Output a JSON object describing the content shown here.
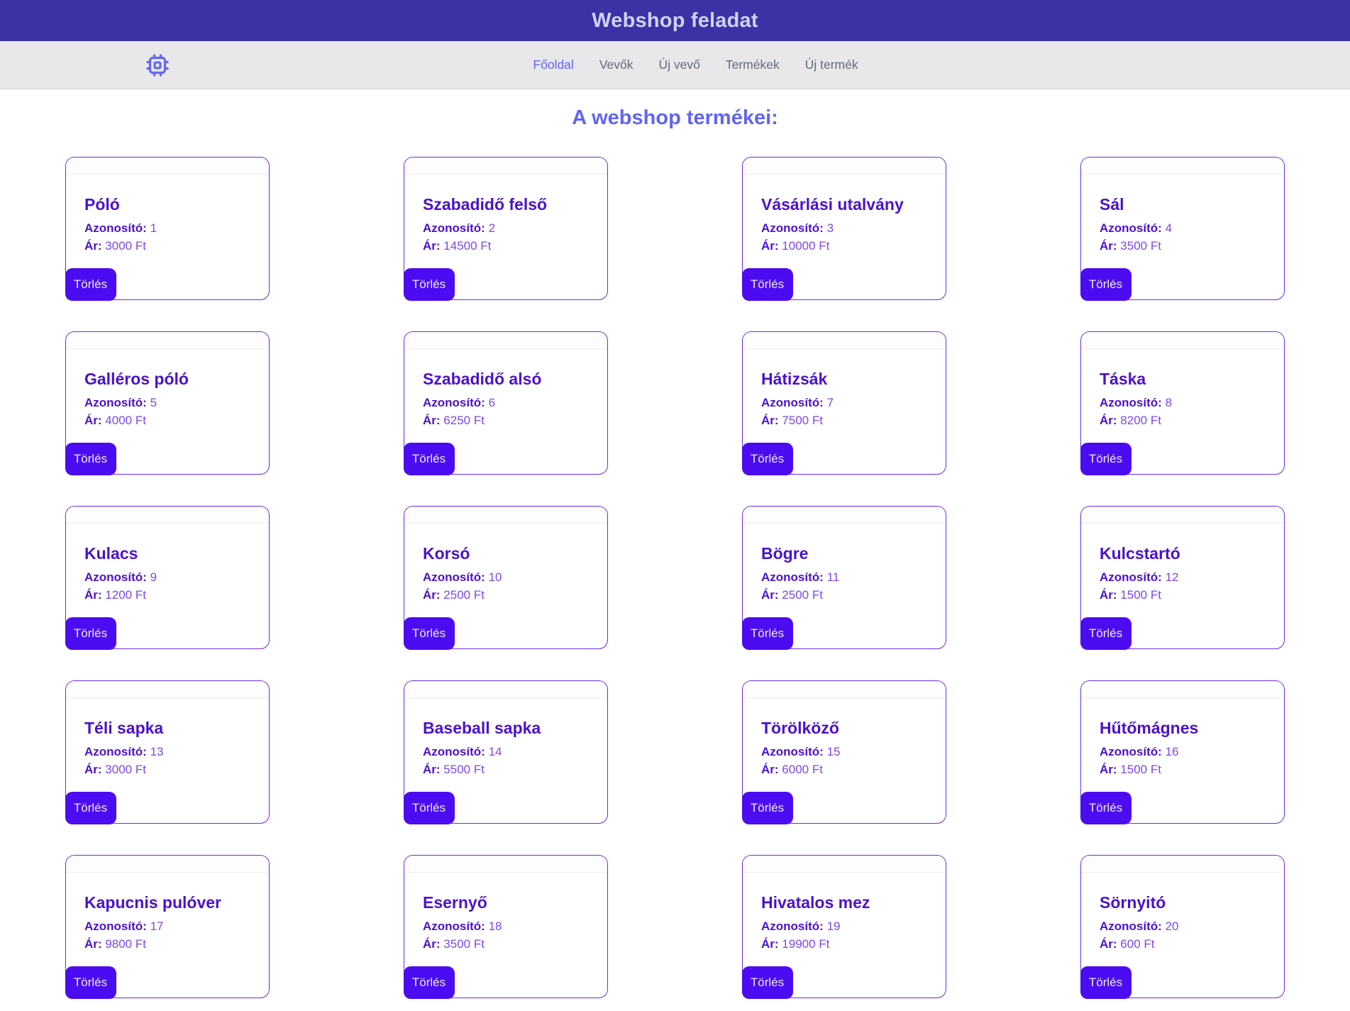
{
  "header": {
    "title": "Webshop feladat"
  },
  "nav": {
    "logo_icon": "cpu-icon",
    "links": [
      {
        "name": "fooldal",
        "label": "Főoldal",
        "active": true
      },
      {
        "name": "vevok",
        "label": "Vevők",
        "active": false
      },
      {
        "name": "uj-vevo",
        "label": "Új vevő",
        "active": false
      },
      {
        "name": "termekek",
        "label": "Termékek",
        "active": false
      },
      {
        "name": "uj-termek",
        "label": "Új termék",
        "active": false
      }
    ]
  },
  "main": {
    "title": "A webshop termékei:",
    "id_label": "Azonosító:",
    "price_label": "Ár:",
    "delete_button_label": "Törlés",
    "products": [
      {
        "name": "Póló",
        "id": "1",
        "price": "3000 Ft"
      },
      {
        "name": "Szabadidő felső",
        "id": "2",
        "price": "14500 Ft"
      },
      {
        "name": "Vásárlási utalvány",
        "id": "3",
        "price": "10000 Ft"
      },
      {
        "name": "Sál",
        "id": "4",
        "price": "3500 Ft"
      },
      {
        "name": "Galléros póló",
        "id": "5",
        "price": "4000 Ft"
      },
      {
        "name": "Szabadidő alsó",
        "id": "6",
        "price": "6250 Ft"
      },
      {
        "name": "Hátizsák",
        "id": "7",
        "price": "7500 Ft"
      },
      {
        "name": "Táska",
        "id": "8",
        "price": "8200 Ft"
      },
      {
        "name": "Kulacs",
        "id": "9",
        "price": "1200 Ft"
      },
      {
        "name": "Korsó",
        "id": "10",
        "price": "2500 Ft"
      },
      {
        "name": "Bögre",
        "id": "11",
        "price": "2500 Ft"
      },
      {
        "name": "Kulcstartó",
        "id": "12",
        "price": "1500 Ft"
      },
      {
        "name": "Téli sapka",
        "id": "13",
        "price": "3000 Ft"
      },
      {
        "name": "Baseball sapka",
        "id": "14",
        "price": "5500 Ft"
      },
      {
        "name": "Törölköző",
        "id": "15",
        "price": "6000 Ft"
      },
      {
        "name": "Hűtőmágnes",
        "id": "16",
        "price": "1500 Ft"
      },
      {
        "name": "Kapucnis pulóver",
        "id": "17",
        "price": "9800 Ft"
      },
      {
        "name": "Esernyő",
        "id": "18",
        "price": "3500 Ft"
      },
      {
        "name": "Hivatalos mez",
        "id": "19",
        "price": "19900 Ft"
      },
      {
        "name": "Sörnyitó",
        "id": "20",
        "price": "600 Ft"
      }
    ]
  },
  "colors": {
    "header_bg": "#3a32a5",
    "header_text": "#cfd4f4",
    "nav_bg": "#e8e8eb",
    "accent": "#6164ee",
    "nav_link_inactive": "#636b76",
    "page_title": "#6065ef",
    "card_border": "#6d2be0",
    "product_name": "#4b11ce",
    "product_value": "#7d46ef",
    "button_bg": "#4c0cf1"
  }
}
